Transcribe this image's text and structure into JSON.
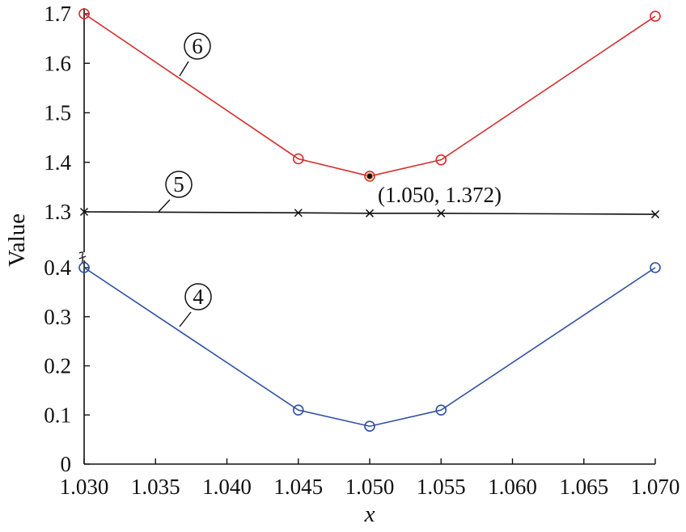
{
  "chart_data": {
    "type": "line",
    "xlabel": "x",
    "ylabel": "Value",
    "xlim": [
      1.03,
      1.07
    ],
    "x_ticks": [
      "1.030",
      "1.035",
      "1.040",
      "1.045",
      "1.050",
      "1.055",
      "1.060",
      "1.065",
      "1.070"
    ],
    "y_ticks_lower": [
      "0",
      "0.1",
      "0.2",
      "0.3",
      "0.4"
    ],
    "y_ticks_upper": [
      "1.3",
      "1.4",
      "1.5",
      "1.6",
      "1.7"
    ],
    "axis_break": "between 0.4 and 1.3",
    "grid": false,
    "series": [
      {
        "label": "6",
        "color": "#d62d2d",
        "marker": "circle",
        "x": [
          1.03,
          1.045,
          1.05,
          1.055,
          1.07
        ],
        "y": [
          1.7,
          1.407,
          1.372,
          1.405,
          1.695
        ]
      },
      {
        "label": "5",
        "color": "#111111",
        "marker": "x",
        "x": [
          1.03,
          1.045,
          1.05,
          1.055,
          1.07
        ],
        "y": [
          1.3,
          1.298,
          1.297,
          1.297,
          1.295
        ]
      },
      {
        "label": "4",
        "color": "#2e4fa3",
        "marker": "circle",
        "x": [
          1.03,
          1.045,
          1.05,
          1.055,
          1.07
        ],
        "y": [
          0.4,
          0.11,
          0.077,
          0.11,
          0.4
        ]
      }
    ],
    "annotation": {
      "text": "(1.050, 1.372)",
      "x": 1.05,
      "y": 1.372
    }
  }
}
